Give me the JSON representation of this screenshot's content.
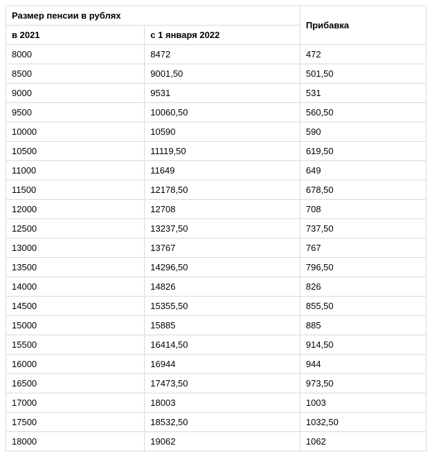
{
  "table": {
    "type": "table",
    "columns": {
      "group_header": "Размер пенсии в рублях",
      "col1": "в 2021",
      "col2": "с 1 января 2022",
      "col3": "Прибавка"
    },
    "column_widths_pct": [
      33,
      37,
      30
    ],
    "border_color": "#d9d9d9",
    "background_color": "#ffffff",
    "text_color": "#000000",
    "header_fontweight": 700,
    "cell_fontsize": 13,
    "rows": [
      [
        "8000",
        "8472",
        "472"
      ],
      [
        "8500",
        "9001,50",
        "501,50"
      ],
      [
        "9000",
        "9531",
        "531"
      ],
      [
        "9500",
        "10060,50",
        "560,50"
      ],
      [
        "10000",
        "10590",
        "590"
      ],
      [
        "10500",
        "11119,50",
        "619,50"
      ],
      [
        "11000",
        "11649",
        "649"
      ],
      [
        "11500",
        "12178,50",
        "678,50"
      ],
      [
        "12000",
        "12708",
        "708"
      ],
      [
        "12500",
        "13237,50",
        "737,50"
      ],
      [
        "13000",
        "13767",
        "767"
      ],
      [
        "13500",
        "14296,50",
        "796,50"
      ],
      [
        "14000",
        "14826",
        "826"
      ],
      [
        "14500",
        "15355,50",
        "855,50"
      ],
      [
        "15000",
        "15885",
        "885"
      ],
      [
        "15500",
        "16414,50",
        "914,50"
      ],
      [
        "16000",
        "16944",
        "944"
      ],
      [
        "16500",
        "17473,50",
        "973,50"
      ],
      [
        "17000",
        "18003",
        "1003"
      ],
      [
        "17500",
        "18532,50",
        "1032,50"
      ],
      [
        "18000",
        "19062",
        "1062"
      ]
    ]
  }
}
